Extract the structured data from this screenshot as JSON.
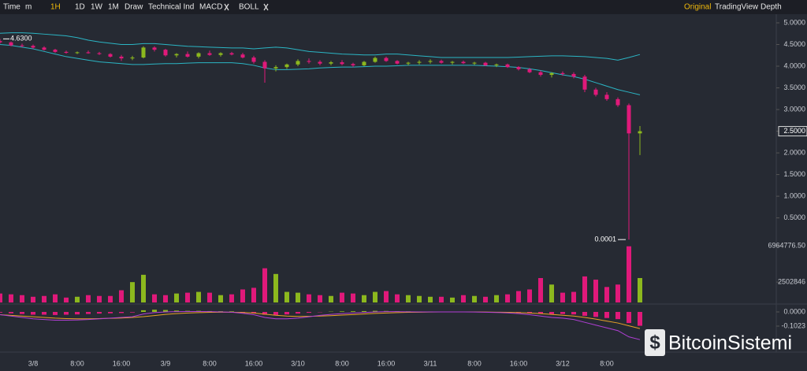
{
  "toolbar": {
    "left": [
      "Time",
      "m",
      "1H",
      "1D",
      "1W",
      "1M",
      "Draw",
      "Technical Ind"
    ],
    "indicators": [
      "MACD",
      "BOLL"
    ],
    "right": [
      "Original",
      "TradingView",
      "Depth"
    ]
  },
  "watermark": "BitcoinSistemi",
  "chart_data": {
    "type": "candlestick",
    "up_color": "#8cb81e",
    "down_color": "#e0197a",
    "categories": [
      null,
      null,
      null,
      "3/8",
      null,
      null,
      null,
      "8:00",
      null,
      null,
      null,
      "16:00",
      null,
      null,
      null,
      "3/9",
      null,
      null,
      null,
      "8:00",
      null,
      null,
      null,
      "16:00",
      null,
      null,
      null,
      "3/10",
      null,
      null,
      null,
      "8:00",
      null,
      null,
      null,
      "16:00",
      null,
      null,
      null,
      "3/11",
      null,
      null,
      null,
      "8:00",
      null,
      null,
      null,
      "16:00",
      null,
      null,
      null,
      "3/12",
      null,
      null,
      null,
      "8:00",
      null,
      null,
      null
    ],
    "open": [
      4.58,
      4.55,
      4.48,
      4.47,
      4.43,
      4.38,
      4.33,
      4.31,
      4.32,
      4.3,
      4.28,
      4.22,
      4.18,
      4.2,
      4.43,
      4.38,
      4.25,
      4.28,
      4.22,
      4.3,
      4.26,
      4.3,
      4.27,
      4.2,
      4.1,
      3.95,
      3.98,
      4.04,
      4.12,
      4.1,
      4.06,
      4.09,
      4.05,
      4.02,
      4.1,
      4.19,
      4.12,
      4.06,
      4.08,
      4.1,
      4.12,
      4.08,
      4.1,
      4.07,
      4.08,
      4.02,
      4.04,
      3.98,
      3.93,
      3.86,
      3.8,
      3.84,
      3.82,
      3.76,
      3.46,
      3.34,
      3.24,
      3.1,
      2.45
    ],
    "high": [
      4.63,
      4.57,
      4.52,
      4.5,
      4.46,
      4.4,
      4.36,
      4.34,
      4.36,
      4.33,
      4.3,
      4.26,
      4.24,
      4.46,
      4.46,
      4.4,
      4.3,
      4.34,
      4.32,
      4.36,
      4.32,
      4.33,
      4.31,
      4.24,
      4.14,
      4.02,
      4.06,
      4.16,
      4.18,
      4.14,
      4.12,
      4.14,
      4.08,
      4.12,
      4.22,
      4.22,
      4.14,
      4.1,
      4.14,
      4.16,
      4.15,
      4.12,
      4.13,
      4.1,
      4.1,
      4.06,
      4.06,
      4.0,
      3.96,
      3.9,
      3.86,
      3.88,
      3.86,
      3.8,
      3.5,
      3.4,
      3.28,
      3.14,
      2.62
    ],
    "low": [
      4.52,
      4.46,
      4.44,
      4.4,
      4.36,
      4.31,
      4.29,
      4.28,
      4.29,
      4.26,
      4.2,
      4.12,
      4.14,
      4.18,
      4.34,
      4.22,
      4.2,
      4.2,
      4.18,
      4.24,
      4.22,
      4.25,
      4.18,
      4.06,
      3.62,
      3.88,
      3.94,
      4.0,
      4.06,
      4.02,
      4.02,
      4.02,
      3.98,
      4.0,
      4.08,
      4.1,
      4.04,
      4.02,
      4.04,
      4.06,
      4.06,
      4.04,
      4.05,
      4.03,
      4.0,
      3.98,
      3.96,
      3.9,
      3.84,
      3.76,
      3.74,
      3.78,
      3.72,
      3.4,
      3.3,
      3.2,
      3.06,
      0.0001,
      1.95
    ],
    "close": [
      4.55,
      4.48,
      4.47,
      4.43,
      4.38,
      4.33,
      4.31,
      4.32,
      4.3,
      4.28,
      4.22,
      4.18,
      4.2,
      4.43,
      4.38,
      4.25,
      4.28,
      4.22,
      4.3,
      4.26,
      4.3,
      4.27,
      4.2,
      4.1,
      3.95,
      3.98,
      4.04,
      4.12,
      4.1,
      4.06,
      4.09,
      4.05,
      4.02,
      4.1,
      4.19,
      4.12,
      4.06,
      4.08,
      4.1,
      4.12,
      4.08,
      4.1,
      4.07,
      4.08,
      4.02,
      4.04,
      3.98,
      3.93,
      3.86,
      3.8,
      3.84,
      3.82,
      3.76,
      3.46,
      3.34,
      3.24,
      3.1,
      2.45,
      2.5
    ],
    "bands": {
      "color": "#2bb5c4",
      "upper": [
        4.76,
        4.77,
        4.77,
        4.76,
        4.74,
        4.72,
        4.7,
        4.66,
        4.6,
        4.56,
        4.53,
        4.5,
        4.5,
        4.52,
        4.52,
        4.5,
        4.48,
        4.46,
        4.45,
        4.44,
        4.43,
        4.42,
        4.42,
        4.4,
        4.42,
        4.44,
        4.42,
        4.38,
        4.34,
        4.32,
        4.3,
        4.28,
        4.27,
        4.26,
        4.26,
        4.28,
        4.28,
        4.26,
        4.24,
        4.22,
        4.2,
        4.2,
        4.2,
        4.2,
        4.2,
        4.2,
        4.2,
        4.21,
        4.22,
        4.23,
        4.24,
        4.24,
        4.23,
        4.22,
        4.2,
        4.18,
        4.14,
        4.2,
        4.27
      ],
      "lower": [
        4.5,
        4.48,
        4.44,
        4.4,
        4.34,
        4.28,
        4.22,
        4.18,
        4.14,
        4.1,
        4.08,
        4.06,
        4.04,
        4.04,
        4.05,
        4.06,
        4.06,
        4.07,
        4.08,
        4.08,
        4.08,
        4.08,
        4.06,
        4.02,
        3.96,
        3.92,
        3.92,
        3.93,
        3.94,
        3.96,
        3.97,
        3.98,
        3.98,
        3.99,
        4.0,
        4.0,
        4.01,
        4.02,
        4.02,
        4.02,
        4.02,
        4.02,
        4.02,
        4.02,
        4.01,
        4.0,
        3.99,
        3.97,
        3.94,
        3.9,
        3.85,
        3.8,
        3.76,
        3.7,
        3.62,
        3.54,
        3.46,
        3.4,
        3.34
      ]
    },
    "ylim": [
      -0.07,
      5.2
    ],
    "yticks": [
      {
        "value": 5,
        "label": "5.0000"
      },
      {
        "value": 4.5,
        "label": "4.5000"
      },
      {
        "value": 4,
        "label": "4.0000"
      },
      {
        "value": 3.5,
        "label": "3.5000"
      },
      {
        "value": 3,
        "label": "3.0000"
      },
      {
        "value": 2.5,
        "label": "2.5000"
      },
      {
        "value": 2,
        "label": "2.0000"
      },
      {
        "value": 1.5,
        "label": "1.5000"
      },
      {
        "value": 1,
        "label": "1.0000"
      },
      {
        "value": 0.5,
        "label": "0.5000"
      }
    ],
    "last_price": {
      "value": 2.5,
      "label": "2.5000"
    },
    "annotations": [
      {
        "value": 4.63,
        "label": "4.6300"
      },
      {
        "value": 0.0001,
        "label": "0.0001"
      }
    ],
    "volume": {
      "ylim": [
        0,
        7158242
      ],
      "yticks": [
        {
          "value": 6964776.5,
          "label": "6964776.50"
        },
        2502846
      ],
      "values": [
        1100000,
        1000000,
        900000,
        700000,
        800000,
        1000000,
        600000,
        700000,
        900000,
        800000,
        800000,
        1500000,
        2500000,
        3400000,
        1000000,
        900000,
        1100000,
        1200000,
        1300000,
        1200000,
        900000,
        1000000,
        1600000,
        1800000,
        4200000,
        3500000,
        1300000,
        1200000,
        1000000,
        900000,
        800000,
        1200000,
        1100000,
        900000,
        1300000,
        1400000,
        1000000,
        900000,
        800000,
        700000,
        700000,
        600000,
        900000,
        800000,
        700000,
        900000,
        1000000,
        1400000,
        1600000,
        3000000,
        2200000,
        1200000,
        1300000,
        3200000,
        2800000,
        1900000,
        2200000,
        6900000,
        3000000
      ]
    },
    "macd": {
      "ylim": [
        -0.29,
        0.0455
      ],
      "yticks": [
        {
          "value": 0,
          "label": "0.0000"
        },
        -0.1023
      ],
      "dif_color": "#b13fd6",
      "dea_color": "#e8a326",
      "histogram": [
        -0.005,
        -0.01,
        -0.015,
        -0.02,
        -0.02,
        -0.022,
        -0.02,
        -0.018,
        -0.015,
        -0.012,
        -0.01,
        -0.008,
        -0.004,
        0.012,
        0.016,
        0.014,
        0.01,
        0.008,
        0.008,
        0.006,
        0.005,
        0.004,
        -0.004,
        -0.01,
        -0.02,
        -0.022,
        -0.018,
        -0.012,
        -0.006,
        -0.002,
        0.002,
        0.004,
        0.005,
        0.006,
        0.008,
        0.007,
        0.005,
        0.004,
        0.003,
        0.003,
        0.002,
        0.002,
        0.001,
        0.001,
        0.0,
        -0.002,
        -0.004,
        -0.006,
        -0.01,
        -0.014,
        -0.016,
        -0.015,
        -0.018,
        -0.028,
        -0.036,
        -0.044,
        -0.052,
        -0.08,
        -0.1
      ],
      "dif": [
        -0.02,
        -0.03,
        -0.04,
        -0.05,
        -0.055,
        -0.06,
        -0.06,
        -0.058,
        -0.055,
        -0.05,
        -0.045,
        -0.04,
        -0.035,
        -0.015,
        -0.005,
        0.0,
        0.002,
        0.003,
        0.003,
        0.002,
        0.0,
        -0.002,
        -0.01,
        -0.02,
        -0.04,
        -0.05,
        -0.05,
        -0.045,
        -0.035,
        -0.025,
        -0.018,
        -0.012,
        -0.008,
        -0.004,
        0.0,
        0.002,
        0.002,
        0.001,
        0.0,
        0.0,
        0.0,
        0.0,
        0.0,
        -0.001,
        -0.002,
        -0.004,
        -0.007,
        -0.012,
        -0.02,
        -0.03,
        -0.04,
        -0.045,
        -0.055,
        -0.075,
        -0.095,
        -0.115,
        -0.135,
        -0.18,
        -0.2
      ],
      "dea": [
        -0.02,
        -0.025,
        -0.03,
        -0.035,
        -0.04,
        -0.045,
        -0.048,
        -0.05,
        -0.05,
        -0.048,
        -0.046,
        -0.044,
        -0.04,
        -0.034,
        -0.026,
        -0.018,
        -0.012,
        -0.008,
        -0.005,
        -0.003,
        -0.002,
        -0.002,
        -0.004,
        -0.008,
        -0.016,
        -0.024,
        -0.03,
        -0.033,
        -0.032,
        -0.03,
        -0.027,
        -0.023,
        -0.019,
        -0.015,
        -0.011,
        -0.008,
        -0.005,
        -0.003,
        -0.002,
        -0.001,
        0.0,
        0.0,
        0.0,
        0.0,
        -0.001,
        -0.002,
        -0.003,
        -0.005,
        -0.008,
        -0.012,
        -0.018,
        -0.024,
        -0.03,
        -0.04,
        -0.052,
        -0.066,
        -0.08,
        -0.1,
        -0.12
      ]
    }
  }
}
